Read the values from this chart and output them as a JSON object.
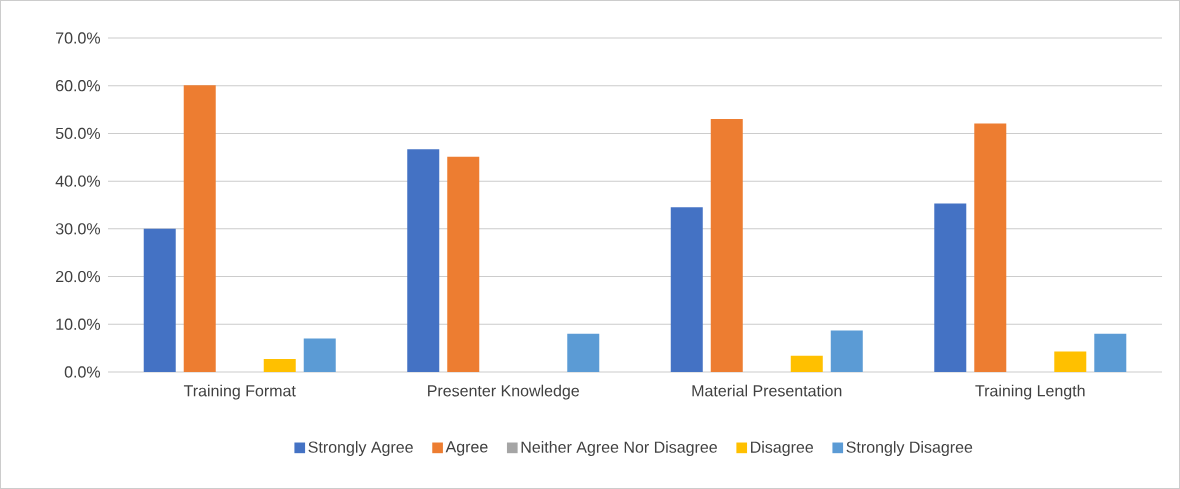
{
  "chart_data": {
    "type": "bar",
    "categories": [
      "Training Format",
      "Presenter Knowledge",
      "Material Presentation",
      "Training Length"
    ],
    "series": [
      {
        "name": "Strongly Agree",
        "color": "#4472c4",
        "values": [
          30.0,
          46.7,
          34.5,
          35.3
        ]
      },
      {
        "name": "Agree",
        "color": "#ed7d31",
        "values": [
          60.1,
          45.1,
          53.0,
          52.1
        ]
      },
      {
        "name": "Neither Agree Nor Disagree",
        "color": "#a5a5a5",
        "values": [
          0,
          0,
          0,
          0
        ]
      },
      {
        "name": "Disagree",
        "color": "#ffc000",
        "values": [
          2.7,
          0,
          3.4,
          4.3
        ]
      },
      {
        "name": "Strongly Disagree",
        "color": "#5b9bd5",
        "values": [
          7.0,
          8.0,
          8.7,
          8.0
        ]
      }
    ],
    "ylim": [
      0,
      70
    ],
    "yticks": [
      {
        "value": 0,
        "label": "0.0%"
      },
      {
        "value": 10,
        "label": "10.0%"
      },
      {
        "value": 20,
        "label": "20.0%"
      },
      {
        "value": 30,
        "label": "30.0%"
      },
      {
        "value": 40,
        "label": "40.0%"
      },
      {
        "value": 50,
        "label": "50.0%"
      },
      {
        "value": 60,
        "label": "60.0%"
      },
      {
        "value": 70,
        "label": "70.0%"
      }
    ],
    "grid": "y",
    "legend": "bottom"
  }
}
